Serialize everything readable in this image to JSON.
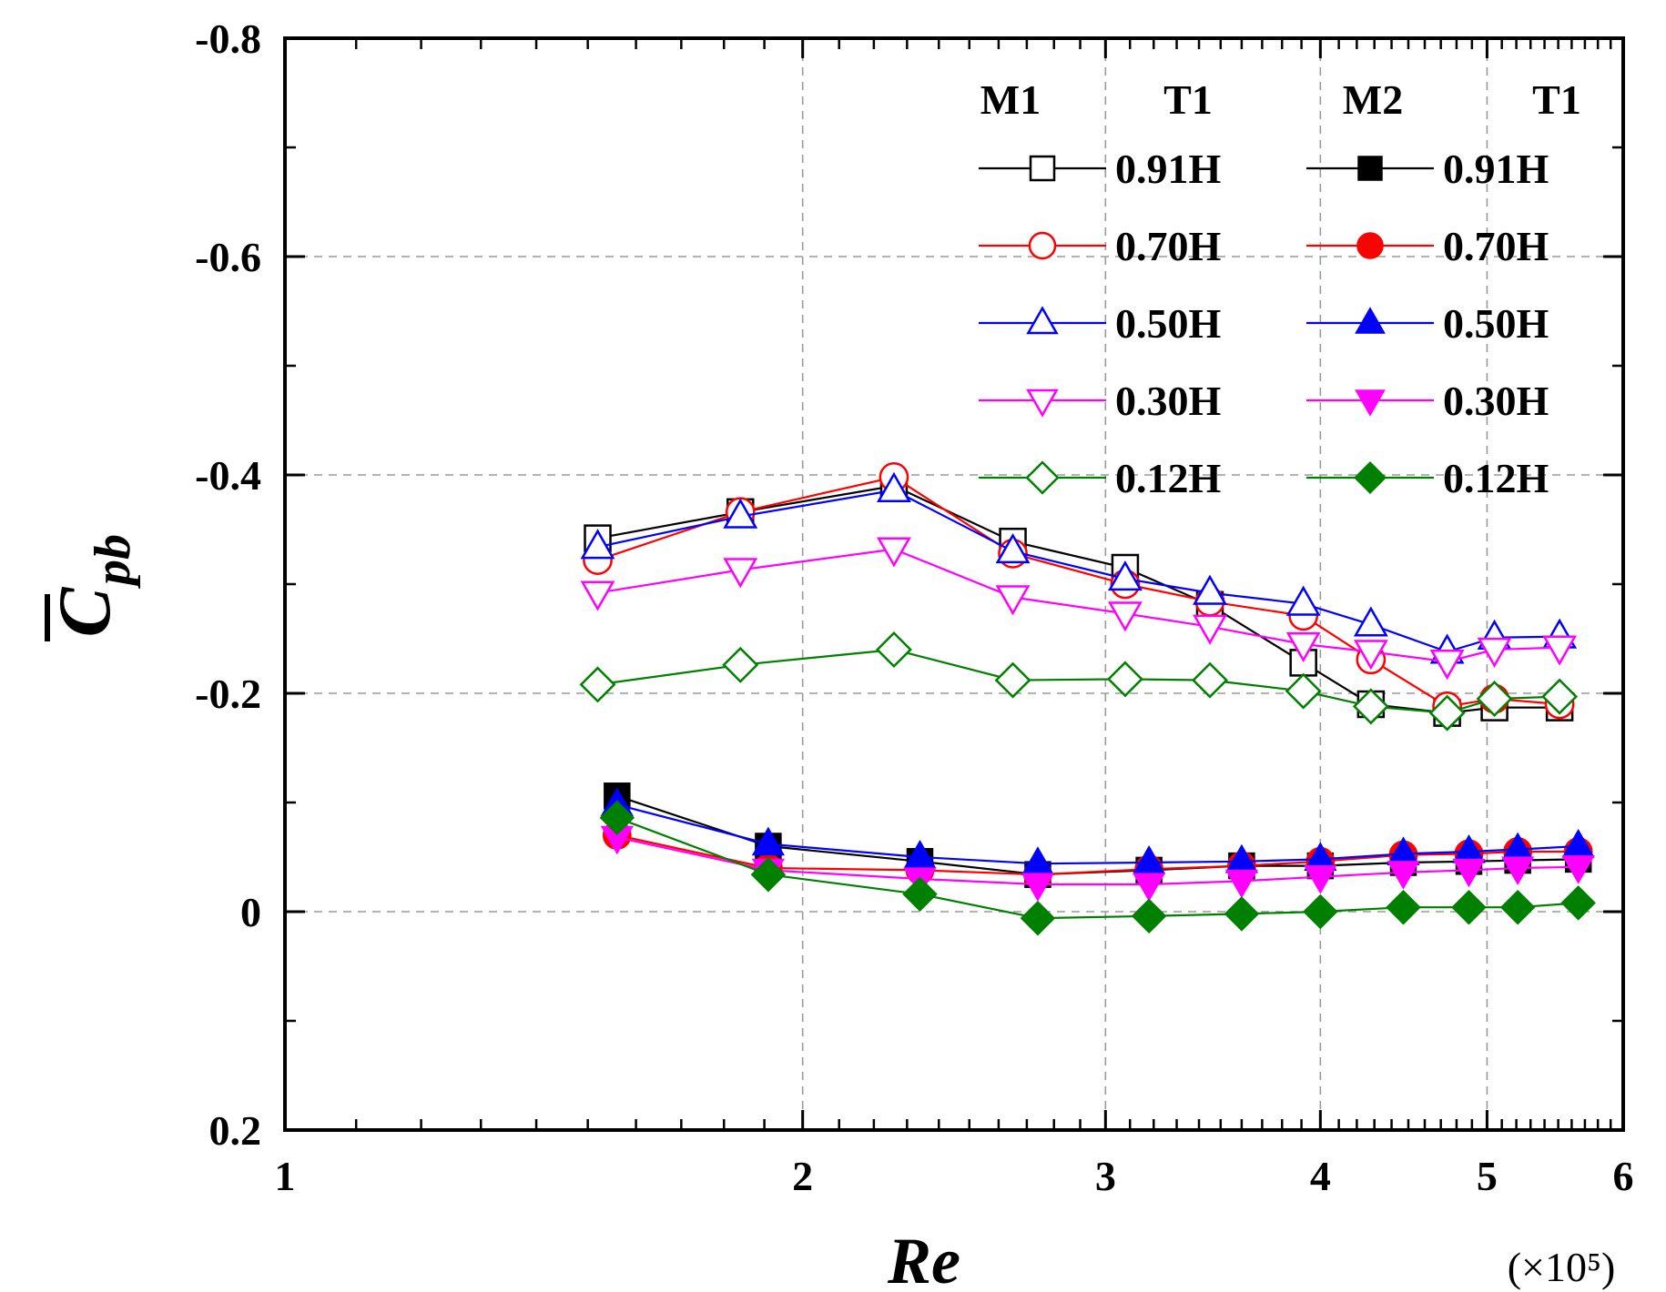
{
  "chart_data": {
    "type": "line",
    "xscale": "log",
    "xlim": [
      1,
      6
    ],
    "ylim": [
      0.2,
      -0.8
    ],
    "y_inverted": true,
    "xticks": [
      1,
      2,
      3,
      4,
      5,
      6
    ],
    "xtick_labels": [
      "1",
      "2",
      "3",
      "4",
      "5",
      "6"
    ],
    "yticks": [
      -0.8,
      -0.6,
      -0.4,
      -0.2,
      0,
      0.2
    ],
    "ytick_labels": [
      "-0.8",
      "-0.6",
      "-0.4",
      "-0.2",
      "0",
      "0.2"
    ],
    "xgrid": [
      2,
      3,
      4,
      5
    ],
    "ygrid": [
      -0.6,
      -0.4,
      -0.2,
      0
    ],
    "xlabel": "Re",
    "x_multiplier": "(×10⁵)",
    "ylabel": "C",
    "ylabel_sub": "pb",
    "legend": {
      "headers": [
        "M1",
        "T1",
        "M2",
        "T1"
      ],
      "position": "top-right"
    },
    "series": [
      {
        "name": "0.91H",
        "group": "M1 T1",
        "color": "#000000",
        "marker": "square",
        "filled": false,
        "x": [
          1.52,
          1.84,
          2.26,
          2.65,
          3.08,
          3.45,
          3.91,
          4.28,
          4.74,
          5.05,
          5.51
        ],
        "y": [
          -0.342,
          -0.366,
          -0.39,
          -0.339,
          -0.315,
          -0.281,
          -0.228,
          -0.19,
          -0.182,
          -0.187,
          -0.187
        ]
      },
      {
        "name": "0.70H",
        "group": "M1 T1",
        "color": "#ff0000",
        "marker": "circle",
        "filled": false,
        "x": [
          1.52,
          1.84,
          2.26,
          2.65,
          3.08,
          3.45,
          3.91,
          4.28,
          4.74,
          5.05,
          5.51
        ],
        "y": [
          -0.322,
          -0.366,
          -0.398,
          -0.328,
          -0.3,
          -0.284,
          -0.271,
          -0.231,
          -0.188,
          -0.195,
          -0.19
        ]
      },
      {
        "name": "0.50H",
        "group": "M1 T1",
        "color": "#0000ff",
        "marker": "triangle-up",
        "filled": false,
        "x": [
          1.52,
          1.84,
          2.26,
          2.65,
          3.08,
          3.45,
          3.91,
          4.28,
          4.74,
          5.05,
          5.51
        ],
        "y": [
          -0.334,
          -0.362,
          -0.386,
          -0.33,
          -0.305,
          -0.292,
          -0.282,
          -0.263,
          -0.238,
          -0.251,
          -0.252
        ]
      },
      {
        "name": "0.30H",
        "group": "M1 T1",
        "color": "#ff00ff",
        "marker": "triangle-down",
        "filled": false,
        "x": [
          1.52,
          1.84,
          2.26,
          2.65,
          3.08,
          3.45,
          3.91,
          4.28,
          4.74,
          5.05,
          5.51
        ],
        "y": [
          -0.292,
          -0.313,
          -0.332,
          -0.288,
          -0.273,
          -0.261,
          -0.245,
          -0.238,
          -0.229,
          -0.24,
          -0.242
        ]
      },
      {
        "name": "0.12H",
        "group": "M1 T1",
        "color": "#008000",
        "marker": "diamond",
        "filled": false,
        "x": [
          1.52,
          1.84,
          2.26,
          2.65,
          3.08,
          3.45,
          3.91,
          4.28,
          4.74,
          5.05,
          5.51
        ],
        "y": [
          -0.208,
          -0.226,
          -0.24,
          -0.212,
          -0.213,
          -0.212,
          -0.202,
          -0.188,
          -0.182,
          -0.195,
          -0.197
        ]
      },
      {
        "name": "0.91H",
        "group": "M2 T1",
        "color": "#000000",
        "marker": "square",
        "filled": true,
        "x": [
          1.56,
          1.91,
          2.34,
          2.74,
          3.18,
          3.6,
          4.0,
          4.47,
          4.88,
          5.21,
          5.65
        ],
        "y": [
          -0.106,
          -0.06,
          -0.046,
          -0.034,
          -0.038,
          -0.042,
          -0.042,
          -0.045,
          -0.046,
          -0.047,
          -0.048
        ]
      },
      {
        "name": "0.70H",
        "group": "M2 T1",
        "color": "#ff0000",
        "marker": "circle",
        "filled": true,
        "x": [
          1.56,
          1.91,
          2.34,
          2.74,
          3.18,
          3.6,
          4.0,
          4.47,
          4.88,
          5.21,
          5.65
        ],
        "y": [
          -0.07,
          -0.04,
          -0.038,
          -0.034,
          -0.039,
          -0.042,
          -0.046,
          -0.052,
          -0.053,
          -0.055,
          -0.055
        ]
      },
      {
        "name": "0.50H",
        "group": "M2 T1",
        "color": "#0000ff",
        "marker": "triangle-up",
        "filled": true,
        "x": [
          1.56,
          1.91,
          2.34,
          2.74,
          3.18,
          3.6,
          4.0,
          4.47,
          4.88,
          5.21,
          5.65
        ],
        "y": [
          -0.098,
          -0.062,
          -0.05,
          -0.044,
          -0.045,
          -0.046,
          -0.048,
          -0.053,
          -0.055,
          -0.057,
          -0.06
        ]
      },
      {
        "name": "0.30H",
        "group": "M2 T1",
        "color": "#ff00ff",
        "marker": "triangle-down",
        "filled": true,
        "x": [
          1.56,
          1.91,
          2.34,
          2.74,
          3.18,
          3.6,
          4.0,
          4.47,
          4.88,
          5.21,
          5.65
        ],
        "y": [
          -0.068,
          -0.038,
          -0.03,
          -0.025,
          -0.025,
          -0.028,
          -0.032,
          -0.036,
          -0.038,
          -0.04,
          -0.041
        ]
      },
      {
        "name": "0.12H",
        "group": "M2 T1",
        "color": "#008000",
        "marker": "diamond",
        "filled": true,
        "x": [
          1.56,
          1.91,
          2.34,
          2.74,
          3.18,
          3.6,
          4.0,
          4.47,
          4.88,
          5.21,
          5.65
        ],
        "y": [
          -0.086,
          -0.034,
          -0.016,
          0.006,
          0.004,
          0.002,
          0.0,
          -0.004,
          -0.004,
          -0.004,
          -0.008
        ]
      }
    ]
  }
}
